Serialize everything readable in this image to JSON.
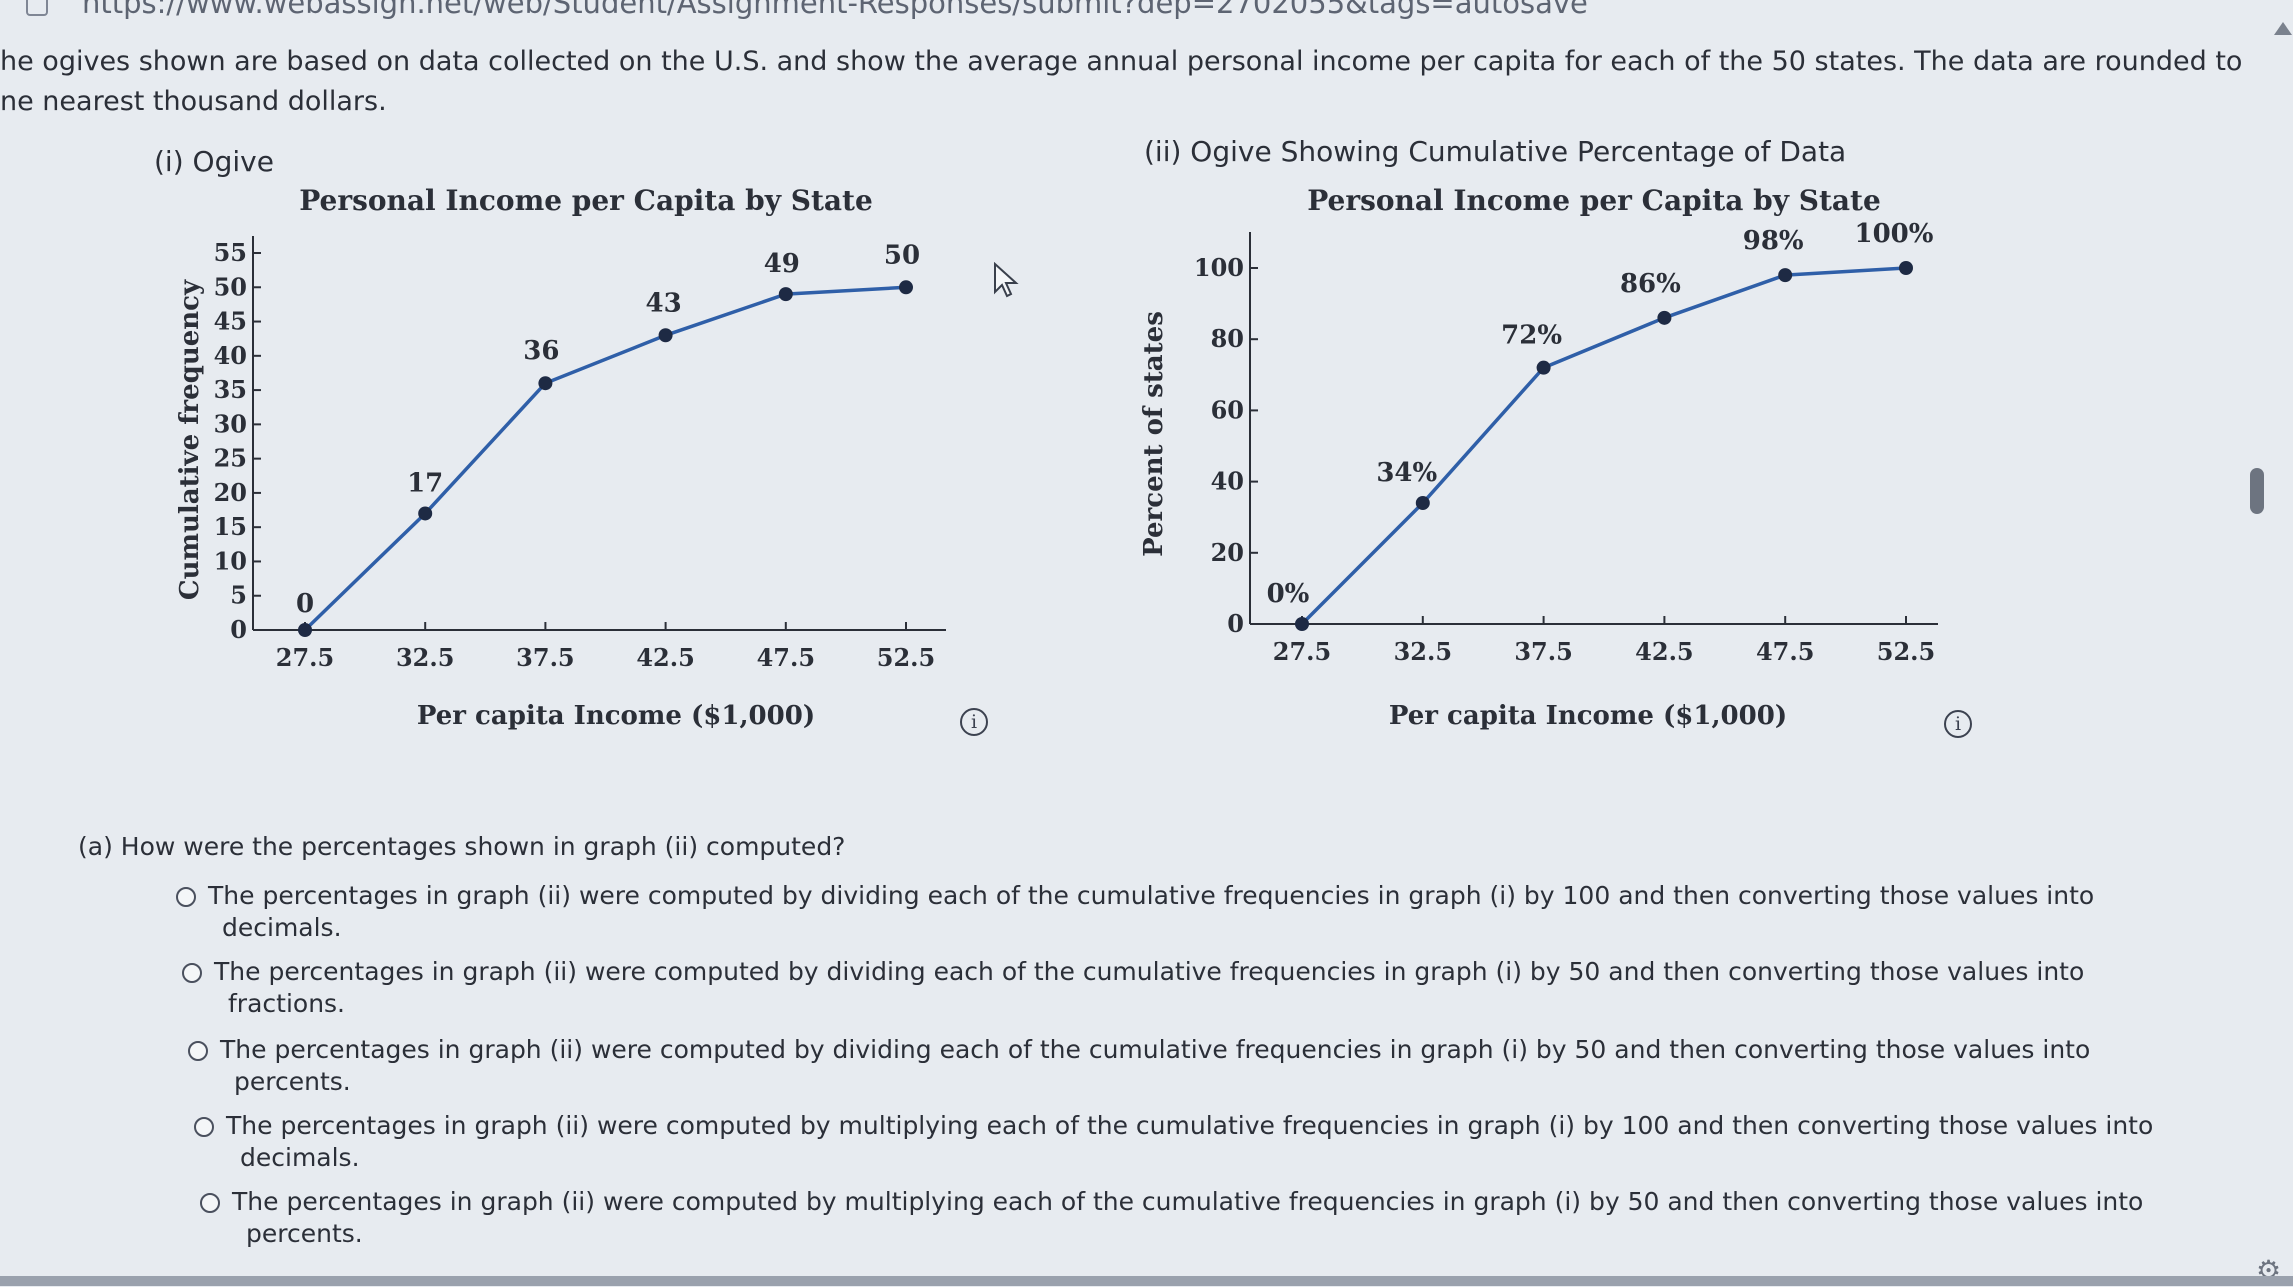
{
  "browser": {
    "url": "https://www.webassign.net/web/Student/Assignment-Responses/submit?dep=2702055&tags=autosave"
  },
  "intro": {
    "line1": "he ogives shown are based on data collected on the U.S. and show the average annual personal income per capita for each of the 50 states. The data are rounded to",
    "line2": "ne nearest thousand dollars."
  },
  "graph_i": {
    "label": "(i) Ogive"
  },
  "graph_ii": {
    "label": "(ii) Ogive Showing Cumulative Percentage of Data"
  },
  "chart_data": [
    {
      "type": "line",
      "title": "Personal Income per Capita by State",
      "xlabel": "Per capita Income ($1,000)",
      "ylabel": "Cumulative frequency",
      "x": [
        27.5,
        32.5,
        37.5,
        42.5,
        47.5,
        52.5
      ],
      "x_ticks": [
        "27.5",
        "32.5",
        "37.5",
        "42.5",
        "47.5",
        "52.5"
      ],
      "y_ticks": [
        "0",
        "5",
        "10",
        "15",
        "20",
        "25",
        "30",
        "35",
        "40",
        "45",
        "50",
        "55"
      ],
      "ylim": [
        0,
        55
      ],
      "grid": false,
      "series": [
        {
          "values": [
            0,
            17,
            36,
            43,
            49,
            50
          ]
        }
      ],
      "data_labels": [
        "0",
        "17",
        "36",
        "43",
        "49",
        "50"
      ],
      "color": "#2f5fa8"
    },
    {
      "type": "line",
      "title": "Personal Income per Capita by State",
      "xlabel": "Per capita Income ($1,000)",
      "ylabel": "Percent of states",
      "x": [
        27.5,
        32.5,
        37.5,
        42.5,
        47.5,
        52.5
      ],
      "x_ticks": [
        "27.5",
        "32.5",
        "37.5",
        "42.5",
        "47.5",
        "52.5"
      ],
      "y_ticks": [
        "0",
        "20",
        "40",
        "60",
        "80",
        "100"
      ],
      "ylim": [
        0,
        100
      ],
      "grid": false,
      "series": [
        {
          "values": [
            0,
            34,
            72,
            86,
            98,
            100
          ]
        }
      ],
      "data_labels": [
        "0%",
        "34%",
        "72%",
        "86%",
        "98%",
        "100%"
      ],
      "color": "#2f5fa8"
    }
  ],
  "question": {
    "label": "(a)   How were the percentages shown in graph (ii) computed?",
    "options": [
      {
        "line1": "The percentages in graph (ii) were computed by dividing each of the cumulative frequencies in graph (i) by 100 and then converting those values into",
        "line2": "decimals."
      },
      {
        "line1": "The percentages in graph (ii) were computed by dividing each of the cumulative frequencies in graph (i) by 50 and then converting those values into",
        "line2": "fractions."
      },
      {
        "line1": "The percentages in graph (ii) were computed by dividing each of the cumulative frequencies in graph (i) by 50 and then converting those values into",
        "line2": "percents."
      },
      {
        "line1": "The percentages in graph (ii) were computed by multiplying each of the cumulative frequencies in graph (i) by 100 and then converting those values into",
        "line2": "decimals."
      },
      {
        "line1": "The percentages in graph (ii) were computed by multiplying each of the cumulative frequencies in graph (i) by 50 and then converting those values into",
        "line2": "percents."
      }
    ]
  },
  "icons": {
    "info": "info-icon",
    "cursor": "mouse-pointer-icon",
    "settings": "gear-icon"
  },
  "colors": {
    "background": "#e7ebf0",
    "line": "#2f5fa8",
    "text": "#2b2f38"
  }
}
